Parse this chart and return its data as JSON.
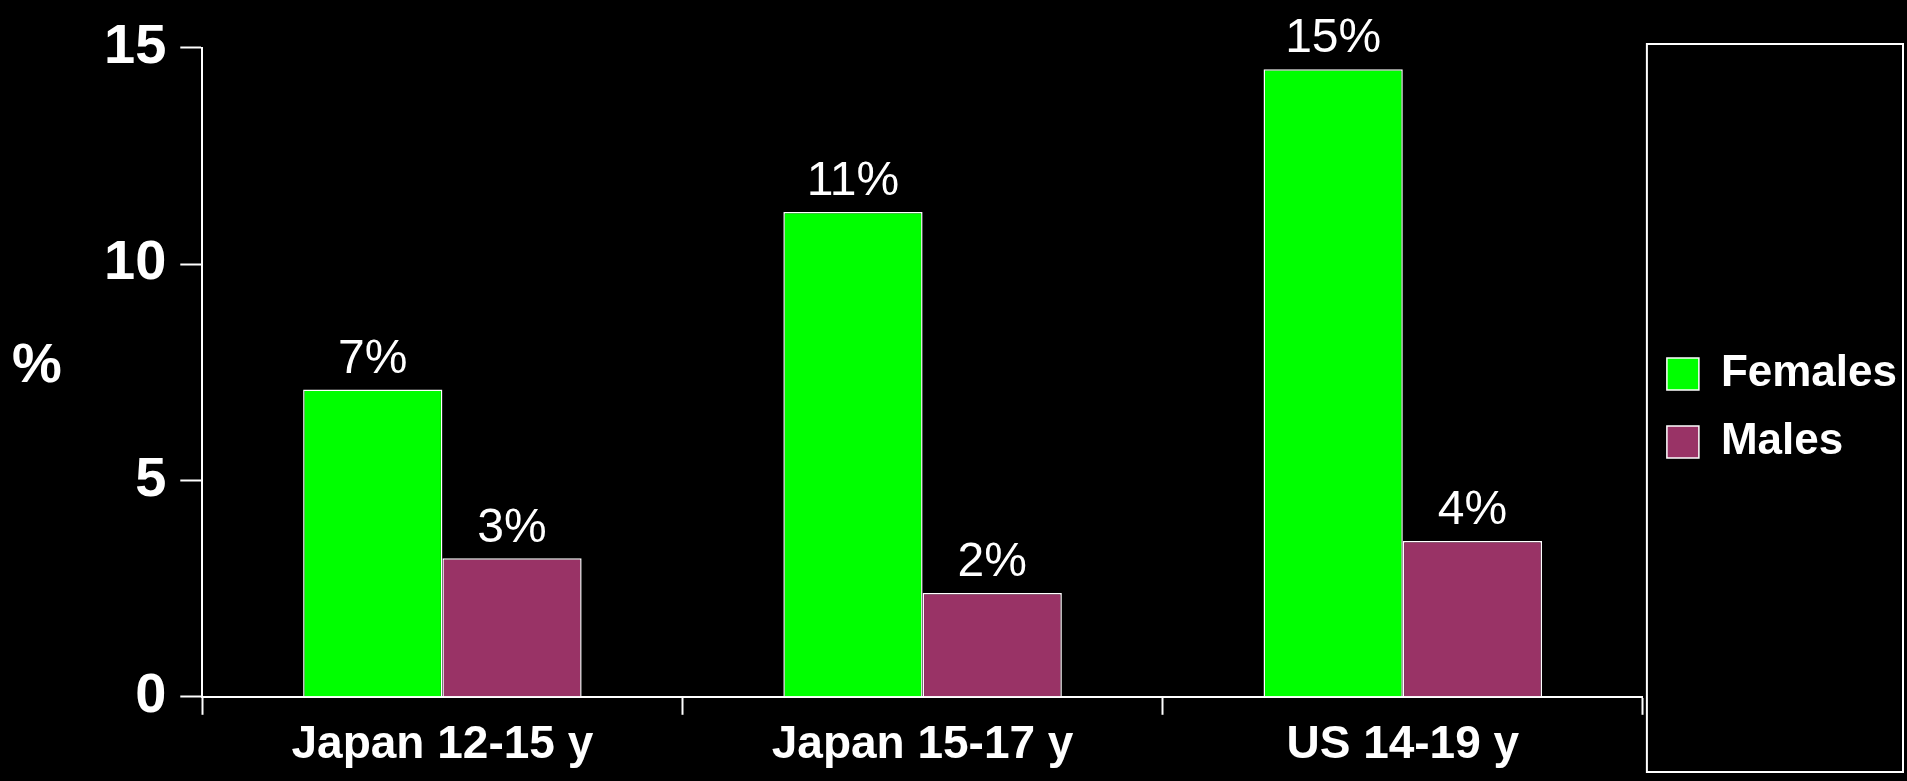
{
  "chart_data": {
    "type": "bar",
    "ylabel": "%",
    "categories": [
      "Japan 12-15 y",
      "Japan 15-17 y",
      "US 14-19 y"
    ],
    "series": [
      {
        "name": "Females",
        "color": "#00ff00",
        "values": [
          7.1,
          11.2,
          14.5
        ],
        "value_labels": [
          "7%",
          "11%",
          "15%"
        ]
      },
      {
        "name": "Males",
        "color": "#993366",
        "values": [
          3.2,
          2.4,
          3.6
        ],
        "value_labels": [
          "3%",
          "2%",
          "4%"
        ]
      }
    ],
    "ylim": [
      0,
      15
    ],
    "yticks": [
      0,
      5,
      10,
      15
    ],
    "grid": false,
    "legend": "right"
  }
}
